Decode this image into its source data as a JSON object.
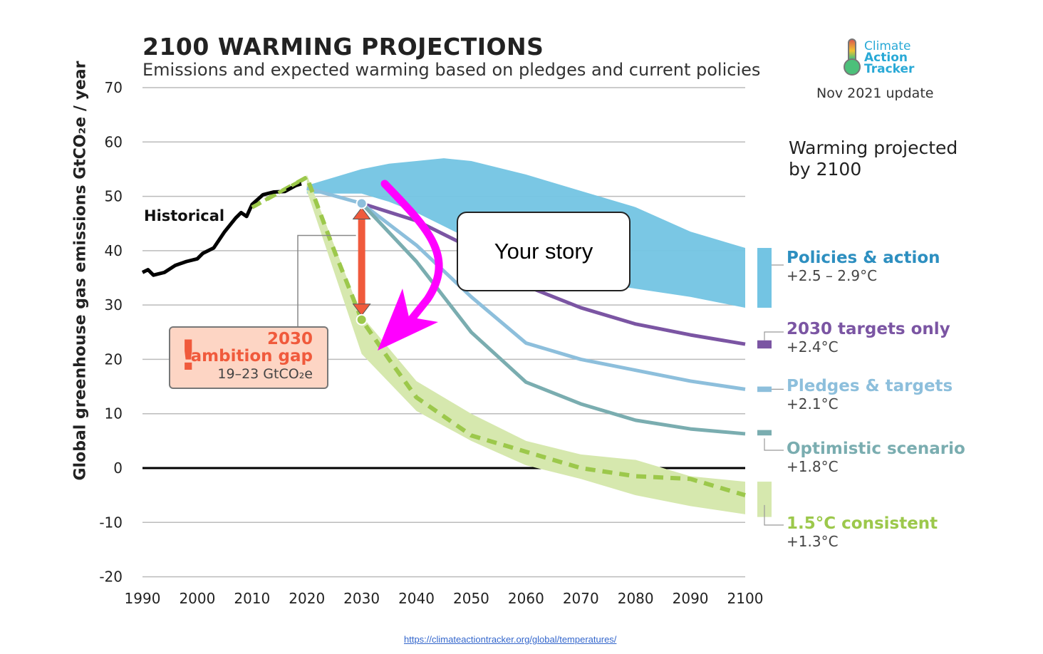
{
  "title": "2100 WARMING PROJECTIONS",
  "subtitle": "Emissions and expected warming based on pledges and current policies",
  "logo": {
    "line1": "Climate",
    "line2": "Action",
    "line3": "Tracker"
  },
  "update": "Nov 2021 update",
  "warming_heading": [
    "Warming projected",
    "by 2100"
  ],
  "annotation_box": "Your story",
  "gap": {
    "year": "2030",
    "label": "ambition gap",
    "range": "19–23  GtCO₂e"
  },
  "url": "https://climateactiontracker.org/global/temperatures/",
  "colors": {
    "policies": "#73c4e3",
    "targets2030": "#7b55a3",
    "pledges": "#8dbfdc",
    "optimistic": "#7aadb0",
    "c15": "#9cc84b",
    "c15band": "#d6e8ae",
    "arrow": "#f05a3c",
    "magenta": "#ff00ff"
  },
  "chart_data": {
    "type": "line",
    "title": "2100 WARMING PROJECTIONS",
    "xlabel": "",
    "ylabel": "Global greenhouse gas emissions  GtCO₂e / year",
    "xlim": [
      1990,
      2100
    ],
    "ylim": [
      -20,
      70
    ],
    "xticks": [
      "1990",
      "2000",
      "2010",
      "2020",
      "2030",
      "2040",
      "2050",
      "2060",
      "2070",
      "2080",
      "2090",
      "2100"
    ],
    "yticks": [
      "70",
      "60",
      "50",
      "40",
      "30",
      "20",
      "10",
      "0",
      "-10",
      "-20"
    ],
    "grid": true,
    "historical": {
      "name": "Historical",
      "x": [
        1990,
        1991,
        1992,
        1994,
        1996,
        1998,
        2000,
        2001,
        2003,
        2005,
        2007,
        2008,
        2009,
        2010,
        2012,
        2014,
        2016,
        2018,
        2019
      ],
      "y": [
        36,
        36.5,
        35.5,
        36,
        37.3,
        38,
        38.5,
        39.5,
        40.5,
        43.5,
        46,
        47,
        46.3,
        48.5,
        50.3,
        50.8,
        50.9,
        52,
        52.3
      ]
    },
    "bands": [
      {
        "name": "Policies & action",
        "warming": "+2.5 – 2.9°C",
        "x": [
          2020,
          2025,
          2030,
          2035,
          2040,
          2045,
          2050,
          2060,
          2070,
          2080,
          2090,
          2100
        ],
        "upper": [
          52,
          53.5,
          55,
          56,
          56.5,
          57,
          56.5,
          54,
          51,
          48,
          43.5,
          40.5
        ],
        "lower": [
          50.5,
          50.5,
          50.5,
          49,
          47,
          44.5,
          42,
          37,
          34.5,
          33,
          31.5,
          29.5
        ]
      },
      {
        "name": "1.5°C consistent band",
        "x": [
          2020,
          2030,
          2040,
          2050,
          2060,
          2070,
          2080,
          2090,
          2100
        ],
        "upper": [
          54,
          28,
          16,
          10,
          5,
          2.5,
          1.5,
          -1.5,
          -2.5
        ],
        "lower": [
          51,
          21,
          10.5,
          5,
          0.5,
          -2,
          -5,
          -7,
          -8.5
        ]
      }
    ],
    "series": [
      {
        "name": "2030 targets only",
        "warming": "+2.4°C",
        "x": [
          2030,
          2040,
          2050,
          2060,
          2070,
          2080,
          2090,
          2100
        ],
        "y": [
          48.7,
          45.5,
          40.5,
          33.5,
          29.5,
          26.5,
          24.5,
          22.8
        ]
      },
      {
        "name": "Pledges & targets",
        "warming": "+2.1°C",
        "x": [
          2020,
          2030,
          2040,
          2050,
          2060,
          2070,
          2080,
          2090,
          2100
        ],
        "y": [
          51.5,
          48.7,
          41,
          31.5,
          23,
          20,
          18,
          16,
          14.5
        ]
      },
      {
        "name": "Optimistic scenario",
        "warming": "+1.8°C",
        "x": [
          2030,
          2040,
          2050,
          2060,
          2070,
          2080,
          2090,
          2100
        ],
        "y": [
          48.7,
          38,
          25,
          15.8,
          11.8,
          8.8,
          7.2,
          6.3
        ]
      },
      {
        "name": "1.5°C consistent",
        "warming": "+1.3°C",
        "x": [
          2010,
          2020,
          2025,
          2030,
          2035,
          2040,
          2050,
          2060,
          2070,
          2080,
          2090,
          2100
        ],
        "y": [
          48,
          53.5,
          40,
          27.3,
          20,
          13,
          6,
          3,
          0,
          -1.5,
          -2,
          -5
        ]
      }
    ],
    "gap_2030": {
      "top": 48.7,
      "bottom": 27.3
    }
  }
}
